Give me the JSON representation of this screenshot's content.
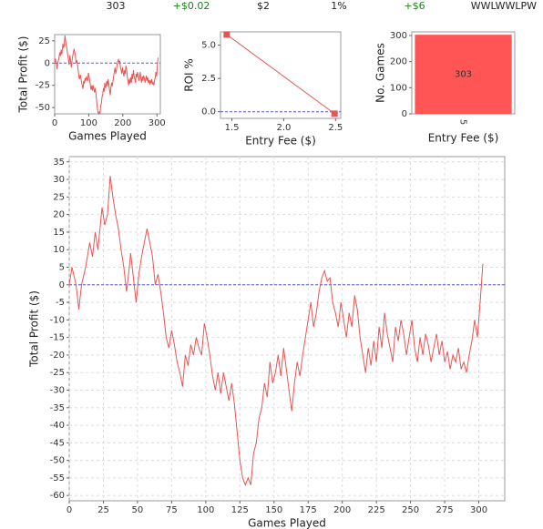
{
  "stats": [
    {
      "text": "303",
      "color": "#222222"
    },
    {
      "text": "+$0.02",
      "color": "#118811"
    },
    {
      "text": "$2",
      "color": "#222222"
    },
    {
      "text": "1%",
      "color": "#222222"
    },
    {
      "text": "+$6",
      "color": "#118811"
    },
    {
      "text": "WWLWWLPW",
      "color": "#222222"
    }
  ],
  "chart_data": [
    {
      "type": "line",
      "ylabel": "Total Profit ($)",
      "xlabel": "Games Played",
      "color": "#e85555",
      "grid": false,
      "hline": 0,
      "hline_color": "#5555dd",
      "xlim": [
        0,
        310
      ],
      "xticks": [
        0,
        100,
        200,
        300
      ],
      "ylim": [
        -57,
        32
      ],
      "yticks": [
        -50,
        -25,
        0,
        25
      ],
      "x": [
        0,
        2,
        5,
        7,
        9,
        12,
        15,
        17,
        19,
        21,
        24,
        26,
        28,
        30,
        32,
        34,
        36,
        38,
        40,
        42,
        44,
        45,
        47,
        49,
        51,
        53,
        55,
        57,
        59,
        61,
        63,
        65,
        67,
        69,
        71,
        73,
        75,
        77,
        79,
        81,
        83,
        85,
        87,
        89,
        91,
        93,
        95,
        97,
        99,
        101,
        103,
        105,
        107,
        109,
        111,
        113,
        115,
        117,
        119,
        121,
        123,
        125,
        127,
        129,
        131,
        133,
        135,
        137,
        139,
        141,
        143,
        145,
        147,
        149,
        151,
        153,
        155,
        157,
        159,
        161,
        163,
        165,
        167,
        169,
        171,
        173,
        175,
        177,
        179,
        181,
        183,
        185,
        187,
        189,
        191,
        193,
        195,
        197,
        199,
        201,
        203,
        205,
        207,
        209,
        211,
        213,
        215,
        217,
        219,
        221,
        223,
        225,
        227,
        229,
        231,
        233,
        235,
        237,
        239,
        241,
        243,
        245,
        247,
        249,
        251,
        253,
        255,
        257,
        259,
        261,
        263,
        265,
        267,
        269,
        271,
        273,
        275,
        277,
        279,
        281,
        283,
        285,
        287,
        289,
        291,
        293,
        295,
        297,
        299,
        301,
        303
      ],
      "values": [
        0,
        5,
        0,
        -7,
        0,
        5,
        12,
        8,
        15,
        10,
        22,
        17,
        20,
        31,
        25,
        20,
        16,
        10,
        5,
        -2,
        5,
        9,
        2,
        -5,
        3,
        8,
        12,
        16,
        12,
        8,
        0,
        3,
        -2,
        -8,
        -15,
        -18,
        -13,
        -17,
        -22,
        -25,
        -29,
        -20,
        -23,
        -17,
        -20,
        -15,
        -18,
        -20,
        -11,
        -15,
        -20,
        -26,
        -30,
        -25,
        -31,
        -25,
        -29,
        -33,
        -28,
        -34,
        -42,
        -50,
        -55,
        -57,
        -55,
        -57,
        -48,
        -45,
        -38,
        -35,
        -28,
        -32,
        -22,
        -28,
        -25,
        -20,
        -26,
        -18,
        -24,
        -30,
        -36,
        -28,
        -22,
        -26,
        -20,
        -15,
        -10,
        -5,
        -12,
        -8,
        -2,
        2,
        4,
        1,
        2,
        -5,
        -8,
        -12,
        -5,
        -10,
        -15,
        -8,
        -12,
        -3,
        -7,
        -15,
        -20,
        -25,
        -18,
        -23,
        -16,
        -22,
        -12,
        -18,
        -8,
        -14,
        -18,
        -22,
        -12,
        -16,
        -10,
        -14,
        -20,
        -15,
        -10,
        -18,
        -22,
        -15,
        -20,
        -14,
        -17,
        -22,
        -18,
        -14,
        -20,
        -16,
        -22,
        -19,
        -24,
        -20,
        -22,
        -18,
        -24,
        -22,
        -25,
        -20,
        -16,
        -10,
        -15,
        -5,
        6
      ]
    },
    {
      "type": "line",
      "markers": true,
      "ylabel": "ROI %",
      "xlabel": "Entry Fee ($)",
      "color": "#e85555",
      "grid": false,
      "hline": 0,
      "hline_color": "#5555dd",
      "xlim": [
        1.39,
        2.55
      ],
      "xticks": [
        {
          "value": 1.5,
          "label": "1.5"
        },
        {
          "value": 2,
          "label": "2.0"
        },
        {
          "value": 2.5,
          "label": "2.5"
        }
      ],
      "ylim": [
        -0.5,
        6
      ],
      "yticks": [
        {
          "value": 0,
          "label": "0.0"
        },
        {
          "value": 2.5,
          "label": "2.5"
        },
        {
          "value": 5,
          "label": "5.0"
        }
      ],
      "x": [
        1.45,
        2.49
      ],
      "values": [
        5.8,
        -0.15
      ]
    },
    {
      "type": "bar",
      "ylabel": "No. Games",
      "xlabel": "Entry Fee ($)",
      "color": "#ff5555",
      "grid": false,
      "ylim": [
        0,
        314
      ],
      "yticks": [
        0,
        100,
        200,
        300
      ],
      "categories": [
        "5"
      ],
      "values": [
        303
      ]
    },
    {
      "type": "line",
      "ylabel": "Total Profit ($)",
      "xlabel": "Games Played",
      "color": "#e85555",
      "grid": true,
      "hline": 0,
      "hline_color": "#5555dd",
      "xlim": [
        0,
        319
      ],
      "xticks": [
        0,
        25,
        50,
        75,
        100,
        125,
        150,
        175,
        200,
        225,
        250,
        275,
        300
      ],
      "ylim": [
        -61.5,
        36.5
      ],
      "yticks": [
        35,
        30,
        25,
        20,
        15,
        10,
        5,
        0,
        -5,
        -10,
        -15,
        -20,
        -25,
        -30,
        -35,
        -40,
        -45,
        -50,
        -55,
        -60
      ],
      "x": [
        0,
        2,
        5,
        7,
        9,
        12,
        15,
        17,
        19,
        21,
        24,
        26,
        28,
        30,
        32,
        34,
        36,
        38,
        40,
        42,
        44,
        45,
        47,
        49,
        51,
        53,
        55,
        57,
        59,
        61,
        63,
        65,
        67,
        69,
        71,
        73,
        75,
        77,
        79,
        81,
        83,
        85,
        87,
        89,
        91,
        93,
        95,
        97,
        99,
        101,
        103,
        105,
        107,
        109,
        111,
        113,
        115,
        117,
        119,
        121,
        123,
        125,
        127,
        129,
        131,
        133,
        135,
        137,
        139,
        141,
        143,
        145,
        147,
        149,
        151,
        153,
        155,
        157,
        159,
        161,
        163,
        165,
        167,
        169,
        171,
        173,
        175,
        177,
        179,
        181,
        183,
        185,
        187,
        189,
        191,
        193,
        195,
        197,
        199,
        201,
        203,
        205,
        207,
        209,
        211,
        213,
        215,
        217,
        219,
        221,
        223,
        225,
        227,
        229,
        231,
        233,
        235,
        237,
        239,
        241,
        243,
        245,
        247,
        249,
        251,
        253,
        255,
        257,
        259,
        261,
        263,
        265,
        267,
        269,
        271,
        273,
        275,
        277,
        279,
        281,
        283,
        285,
        287,
        289,
        291,
        293,
        295,
        297,
        299,
        301,
        303
      ],
      "values": [
        0,
        5,
        0,
        -7,
        0,
        5,
        12,
        8,
        15,
        10,
        22,
        17,
        20,
        31,
        25,
        20,
        16,
        10,
        5,
        -2,
        5,
        9,
        2,
        -5,
        3,
        8,
        12,
        16,
        12,
        8,
        0,
        3,
        -2,
        -8,
        -15,
        -18,
        -13,
        -17,
        -22,
        -25,
        -29,
        -20,
        -23,
        -17,
        -20,
        -15,
        -18,
        -20,
        -11,
        -15,
        -20,
        -26,
        -30,
        -25,
        -31,
        -25,
        -29,
        -33,
        -28,
        -34,
        -42,
        -50,
        -55,
        -57,
        -55,
        -57,
        -48,
        -45,
        -38,
        -35,
        -28,
        -32,
        -22,
        -28,
        -25,
        -20,
        -26,
        -18,
        -24,
        -30,
        -36,
        -28,
        -22,
        -26,
        -20,
        -15,
        -10,
        -5,
        -12,
        -8,
        -2,
        2,
        4,
        1,
        2,
        -5,
        -8,
        -12,
        -5,
        -10,
        -15,
        -8,
        -12,
        -3,
        -7,
        -15,
        -20,
        -25,
        -18,
        -23,
        -16,
        -22,
        -12,
        -18,
        -8,
        -14,
        -18,
        -22,
        -12,
        -16,
        -10,
        -14,
        -20,
        -15,
        -10,
        -18,
        -22,
        -15,
        -20,
        -14,
        -17,
        -22,
        -18,
        -14,
        -20,
        -16,
        -22,
        -19,
        -24,
        -20,
        -22,
        -18,
        -24,
        -22,
        -25,
        -20,
        -16,
        -10,
        -15,
        -5,
        6
      ]
    }
  ]
}
